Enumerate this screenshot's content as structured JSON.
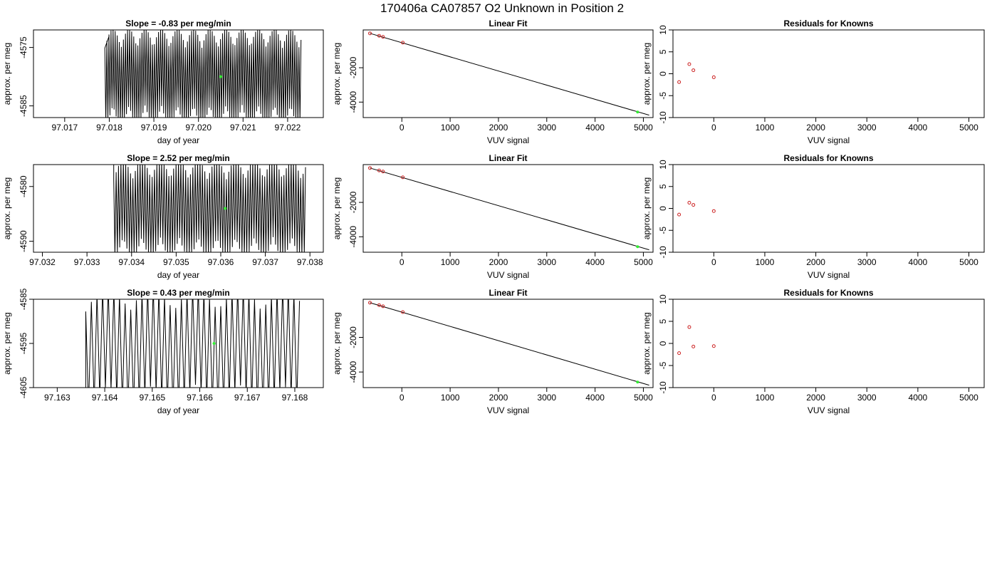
{
  "figure": {
    "title": "170406a      CA07857   O2 Unknown in Position  2"
  },
  "chart_data": [
    {
      "type": "line",
      "title": "Slope =  -0.83  per meg/min",
      "xlabel": "day of year",
      "ylabel": "approx. per meg",
      "xlim": [
        97.0163,
        97.0228
      ],
      "ylim": [
        -4587,
        -4572
      ],
      "xticks": [
        "97.017",
        "97.018",
        "97.019",
        "97.020",
        "97.021",
        "97.022"
      ],
      "xtick_values": [
        97.017,
        97.018,
        97.019,
        97.02,
        97.021,
        97.022
      ],
      "yticks": [
        "-4575",
        "-4585"
      ],
      "ytick_values": [
        -4575,
        -4585
      ],
      "trace": {
        "x_start": 97.0179,
        "x_end": 97.0223,
        "cycles": 95,
        "center": -4580,
        "amplitude": 6.5,
        "lead_x": 97.018,
        "lead_y": -4573
      },
      "highlight_point": {
        "x": 97.0205,
        "y": -4580,
        "color": "#33ee33"
      }
    },
    {
      "type": "scatter",
      "title": "Linear Fit",
      "xlabel": "VUV signal",
      "ylabel": "approx. per meg",
      "xlim": [
        -800,
        5200
      ],
      "ylim": [
        -4900,
        200
      ],
      "xticks": [
        "0",
        "1000",
        "2000",
        "3000",
        "4000",
        "5000"
      ],
      "xtick_values": [
        0,
        1000,
        2000,
        3000,
        4000,
        5000
      ],
      "yticks": [
        "-2000",
        "-4000"
      ],
      "ytick_values": [
        -2000,
        -4000
      ],
      "points": [
        {
          "x": -660,
          "y": 0
        },
        {
          "x": -470,
          "y": -140
        },
        {
          "x": -390,
          "y": -205
        },
        {
          "x": 20,
          "y": -540
        }
      ],
      "fit_line": {
        "x": [
          -660,
          5120
        ],
        "y": [
          0,
          -4760
        ]
      },
      "unknown_point": {
        "x": 4880,
        "y": -4580
      },
      "point_color": "#cc2222",
      "unknown_color": "#33ee33"
    },
    {
      "type": "scatter",
      "title": "Residuals for Knowns",
      "xlabel": "VUV signal",
      "ylabel": "approx. per meg",
      "xlim": [
        -800,
        5300
      ],
      "ylim": [
        -10,
        10
      ],
      "xticks": [
        "0",
        "1000",
        "2000",
        "3000",
        "4000",
        "5000"
      ],
      "xtick_values": [
        0,
        1000,
        2000,
        3000,
        4000,
        5000
      ],
      "yticks": [
        "-10",
        "-5",
        "0",
        "5",
        "10"
      ],
      "ytick_values": [
        -10,
        -5,
        0,
        5,
        10
      ],
      "points": [
        {
          "x": -680,
          "y": -1.9
        },
        {
          "x": -480,
          "y": 2.2
        },
        {
          "x": -400,
          "y": 0.8
        },
        {
          "x": 0,
          "y": -0.8
        }
      ],
      "point_color": "#cc2222"
    },
    {
      "type": "line",
      "title": "Slope =  2.52  per meg/min",
      "xlabel": "day of year",
      "ylabel": "approx. per meg",
      "xlim": [
        97.0318,
        97.0383
      ],
      "ylim": [
        -4592,
        -4576
      ],
      "xticks": [
        "97.032",
        "97.033",
        "97.034",
        "97.035",
        "97.036",
        "97.037",
        "97.038"
      ],
      "xtick_values": [
        97.032,
        97.033,
        97.034,
        97.035,
        97.036,
        97.037,
        97.038
      ],
      "yticks": [
        "-4580",
        "-4590"
      ],
      "ytick_values": [
        -4580,
        -4590
      ],
      "trace": {
        "x_start": 97.0336,
        "x_end": 97.0379,
        "cycles": 80,
        "center": -4584,
        "amplitude": 7,
        "lead_x": 97.0336,
        "lead_y": -4576
      },
      "highlight_point": {
        "x": 97.0361,
        "y": -4584,
        "color": "#33ee33"
      }
    },
    {
      "type": "scatter",
      "title": "Linear Fit",
      "xlabel": "VUV signal",
      "ylabel": "approx. per meg",
      "xlim": [
        -800,
        5200
      ],
      "ylim": [
        -4900,
        200
      ],
      "xticks": [
        "0",
        "1000",
        "2000",
        "3000",
        "4000",
        "5000"
      ],
      "xtick_values": [
        0,
        1000,
        2000,
        3000,
        4000,
        5000
      ],
      "yticks": [
        "-2000",
        "-4000"
      ],
      "ytick_values": [
        -2000,
        -4000
      ],
      "points": [
        {
          "x": -660,
          "y": 0
        },
        {
          "x": -470,
          "y": -140
        },
        {
          "x": -390,
          "y": -205
        },
        {
          "x": 20,
          "y": -540
        }
      ],
      "fit_line": {
        "x": [
          -660,
          5120
        ],
        "y": [
          0,
          -4760
        ]
      },
      "unknown_point": {
        "x": 4880,
        "y": -4580
      },
      "point_color": "#cc2222",
      "unknown_color": "#33ee33"
    },
    {
      "type": "scatter",
      "title": "Residuals for Knowns",
      "xlabel": "VUV signal",
      "ylabel": "approx. per meg",
      "xlim": [
        -800,
        5300
      ],
      "ylim": [
        -10,
        10
      ],
      "xticks": [
        "0",
        "1000",
        "2000",
        "3000",
        "4000",
        "5000"
      ],
      "xtick_values": [
        0,
        1000,
        2000,
        3000,
        4000,
        5000
      ],
      "yticks": [
        "-10",
        "-5",
        "0",
        "5",
        "10"
      ],
      "ytick_values": [
        -10,
        -5,
        0,
        5,
        10
      ],
      "points": [
        {
          "x": -680,
          "y": -1.4
        },
        {
          "x": -480,
          "y": 1.3
        },
        {
          "x": -400,
          "y": 0.8
        },
        {
          "x": 0,
          "y": -0.6
        }
      ],
      "point_color": "#cc2222"
    },
    {
      "type": "line",
      "title": "Slope =  0.43  per meg/min",
      "xlabel": "day of year",
      "ylabel": "approx. per meg",
      "xlim": [
        97.1625,
        97.1686
      ],
      "ylim": [
        -4605,
        -4585
      ],
      "xticks": [
        "97.163",
        "97.164",
        "97.165",
        "97.166",
        "97.167",
        "97.168"
      ],
      "xtick_values": [
        97.163,
        97.164,
        97.165,
        97.166,
        97.167,
        97.168
      ],
      "yticks": [
        "-4585",
        "-4595",
        "-4605"
      ],
      "ytick_values": [
        -4585,
        -4595,
        -4605
      ],
      "trace": {
        "x_start": 97.1636,
        "x_end": 97.1681,
        "cycles": 38,
        "center": -4596,
        "amplitude": 11,
        "lead_x": 97.1636,
        "lead_y": -4605
      },
      "highlight_point": {
        "x": 97.1663,
        "y": -4595,
        "color": "#33ee33"
      }
    },
    {
      "type": "scatter",
      "title": "Linear Fit",
      "xlabel": "VUV signal",
      "ylabel": "approx. per meg",
      "xlim": [
        -800,
        5200
      ],
      "ylim": [
        -4900,
        200
      ],
      "xticks": [
        "0",
        "1000",
        "2000",
        "3000",
        "4000",
        "5000"
      ],
      "xtick_values": [
        0,
        1000,
        2000,
        3000,
        4000,
        5000
      ],
      "yticks": [
        "-2000",
        "-4000"
      ],
      "ytick_values": [
        -2000,
        -4000
      ],
      "points": [
        {
          "x": -660,
          "y": 0
        },
        {
          "x": -470,
          "y": -140
        },
        {
          "x": -390,
          "y": -205
        },
        {
          "x": 20,
          "y": -540
        }
      ],
      "fit_line": {
        "x": [
          -660,
          5120
        ],
        "y": [
          0,
          -4760
        ]
      },
      "unknown_point": {
        "x": 4880,
        "y": -4580
      },
      "point_color": "#cc2222",
      "unknown_color": "#33ee33"
    },
    {
      "type": "scatter",
      "title": "Residuals for Knowns",
      "xlabel": "VUV signal",
      "ylabel": "approx. per meg",
      "xlim": [
        -800,
        5300
      ],
      "ylim": [
        -10,
        10
      ],
      "xticks": [
        "0",
        "1000",
        "2000",
        "3000",
        "4000",
        "5000"
      ],
      "xtick_values": [
        0,
        1000,
        2000,
        3000,
        4000,
        5000
      ],
      "yticks": [
        "-10",
        "-5",
        "0",
        "5",
        "10"
      ],
      "ytick_values": [
        -10,
        -5,
        0,
        5,
        10
      ],
      "points": [
        {
          "x": -680,
          "y": -2.2
        },
        {
          "x": -480,
          "y": 3.7
        },
        {
          "x": -400,
          "y": -0.7
        },
        {
          "x": 0,
          "y": -0.6
        }
      ],
      "point_color": "#cc2222"
    }
  ]
}
